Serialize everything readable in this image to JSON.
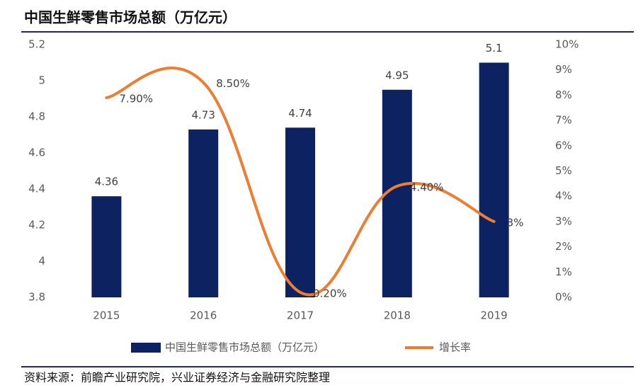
{
  "chart_data": {
    "type": "bar",
    "title": "中国生鲜零售市场总额（万亿元）",
    "source": "资料来源：前瞻产业研究院，兴业证券经济与金融研究院整理",
    "categories": [
      "2015",
      "2016",
      "2017",
      "2018",
      "2019"
    ],
    "series": [
      {
        "name": "中国生鲜零售市场总额（万亿元）",
        "color": "#0d2260",
        "values": [
          4.36,
          4.73,
          4.74,
          4.95,
          5.1
        ]
      },
      {
        "name": "增长率",
        "type": "line",
        "axis": "y2",
        "color": "#ed7d31",
        "values": [
          7.9,
          8.5,
          0.2,
          4.4,
          3
        ],
        "value_labels": [
          "7.90%",
          "8.50%",
          "0.20%",
          "4.40%",
          "3%"
        ]
      }
    ],
    "ylim": [
      3.8,
      5.2
    ],
    "yticks": [
      3.8,
      4,
      4.2,
      4.4,
      4.6,
      4.8,
      5,
      5.2
    ],
    "y2lim": [
      0,
      10
    ],
    "y2ticks": [
      {
        "value": 0,
        "label": "0%"
      },
      {
        "value": 1,
        "label": "1%"
      },
      {
        "value": 2,
        "label": "2%"
      },
      {
        "value": 3,
        "label": "3%"
      },
      {
        "value": 4,
        "label": "4%"
      },
      {
        "value": 5,
        "label": "5%"
      },
      {
        "value": 6,
        "label": "6%"
      },
      {
        "value": 7,
        "label": "7%"
      },
      {
        "value": 8,
        "label": "8%"
      },
      {
        "value": 9,
        "label": "9%"
      },
      {
        "value": 10,
        "label": "10%"
      }
    ]
  }
}
